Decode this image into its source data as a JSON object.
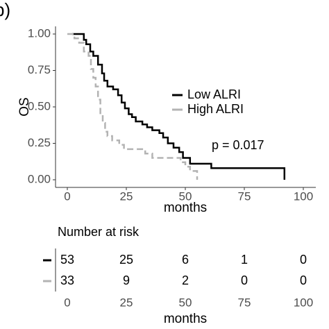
{
  "panel_label": "b)",
  "chart_data": {
    "type": "step",
    "xlabel": "months",
    "ylabel": "OS",
    "xlim": [
      -5,
      105
    ],
    "ylim": [
      -0.05,
      1.05
    ],
    "xticks": [
      0,
      25,
      50,
      75,
      100
    ],
    "yticks": [
      {
        "value": 0,
        "label": "0.00"
      },
      {
        "value": 0.25,
        "label": "0.25"
      },
      {
        "value": 0.5,
        "label": "0.50"
      },
      {
        "value": 0.75,
        "label": "0.75"
      },
      {
        "value": 1,
        "label": "1.00"
      }
    ],
    "grid": false,
    "legend": "right",
    "annotation": "p = 0.017",
    "series": [
      {
        "name": "Low ALRI",
        "color": "#000000",
        "dash": false,
        "x": [
          2,
          7,
          8,
          9.7,
          11,
          13,
          14.7,
          15.6,
          17,
          19.4,
          21.5,
          23,
          24.4,
          26,
          27.4,
          29,
          31.8,
          33.8,
          36,
          39,
          40.6,
          42.6,
          45,
          47.4,
          49,
          52,
          61,
          92
        ],
        "values": [
          1,
          0.96,
          0.93,
          0.88,
          0.85,
          0.79,
          0.73,
          0.68,
          0.64,
          0.62,
          0.58,
          0.53,
          0.49,
          0.45,
          0.43,
          0.4,
          0.38,
          0.36,
          0.34,
          0.32,
          0.29,
          0.25,
          0.22,
          0.19,
          0.15,
          0.11,
          0.08,
          0
        ]
      },
      {
        "name": "High ALRI",
        "color": "#b3b3b3",
        "dash": true,
        "x": [
          0,
          3,
          5,
          7,
          9,
          10,
          11,
          12,
          13,
          14,
          15,
          16,
          17,
          19,
          22,
          24,
          33,
          36,
          48,
          50,
          52,
          55
        ],
        "values": [
          1,
          0.97,
          0.94,
          0.88,
          0.85,
          0.76,
          0.7,
          0.64,
          0.55,
          0.45,
          0.39,
          0.33,
          0.3,
          0.27,
          0.24,
          0.21,
          0.18,
          0.15,
          0.12,
          0.09,
          0.06,
          0
        ]
      }
    ],
    "risk_table": {
      "title": "Number at risk",
      "times": [
        0,
        25,
        50,
        75,
        100
      ],
      "xticks": [
        0,
        25,
        50,
        75,
        100
      ],
      "xlabel": "months",
      "rows": [
        {
          "color": "#000000",
          "values": [
            53,
            25,
            6,
            1,
            0
          ]
        },
        {
          "color": "#b3b3b3",
          "values": [
            33,
            9,
            2,
            0,
            0
          ]
        }
      ]
    }
  }
}
